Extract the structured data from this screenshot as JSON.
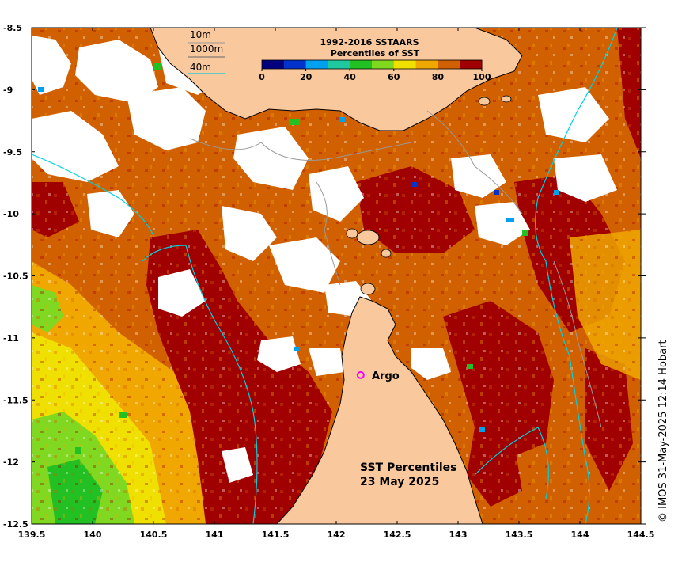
{
  "map": {
    "title_line1": "SST Percentiles",
    "title_line2": "23 May 2025",
    "credit": "© IMOS 31-May-2025 12:14 Hobart",
    "lon_ticks": [
      "139.5",
      "140",
      "140.5",
      "141",
      "141.5",
      "142",
      "142.5",
      "143",
      "143.5",
      "144",
      "144.5"
    ],
    "lat_ticks": [
      "-8.5",
      "-9",
      "-9.5",
      "-10",
      "-10.5",
      "-11",
      "-11.5",
      "-12",
      "-12.5"
    ],
    "lon_range": [
      139.5,
      144.5
    ],
    "lat_range": [
      -12.5,
      -8.5
    ]
  },
  "depth_legend": {
    "d10": "10m",
    "d1000": "1000m",
    "d40": "40m"
  },
  "colorbar": {
    "title_line1": "1992-2016 SSTAARS",
    "title_line2": "Percentiles of SST",
    "ticks": [
      "0",
      "20",
      "40",
      "60",
      "80",
      "100"
    ],
    "colors": [
      "#00007f",
      "#0033cc",
      "#00a0f0",
      "#20c8a0",
      "#22c022",
      "#80d820",
      "#f0e000",
      "#f0a800",
      "#d06000",
      "#a00000"
    ]
  },
  "marker": {
    "label": "Argo",
    "color": "#ff00ff",
    "lon": 142.2,
    "lat": -11.3
  },
  "colors": {
    "land": "#f9c89d",
    "cloud": "#ffffff",
    "coast": "#000000",
    "contour_10m": "#999999",
    "contour_40m": "#00d0e0"
  }
}
